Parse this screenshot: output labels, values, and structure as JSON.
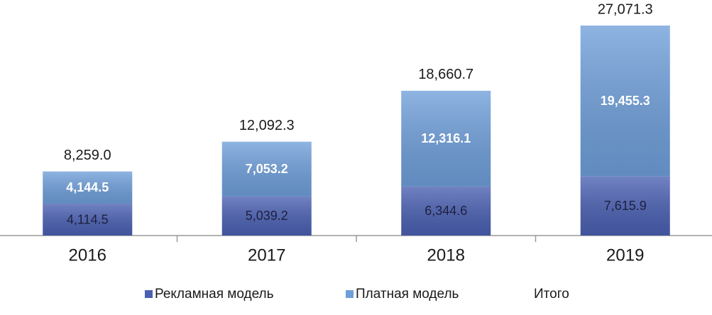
{
  "chart_data": {
    "type": "bar",
    "stacked": true,
    "categories": [
      "2016",
      "2017",
      "2018",
      "2019"
    ],
    "series": [
      {
        "name": "Рекламная модель",
        "color": "#4a60b2",
        "values": [
          4114.5,
          5039.2,
          6344.6,
          7615.9
        ],
        "value_labels": [
          "4,114.5",
          "5,039.2",
          "6,344.6",
          "7,615.9"
        ]
      },
      {
        "name": "Платная модель",
        "color": "#6f9fda",
        "values": [
          4144.5,
          7053.2,
          12316.1,
          19455.3
        ],
        "value_labels": [
          "4,144.5",
          "7,053.2",
          "12,316.1",
          "19,455.3"
        ]
      }
    ],
    "total": {
      "name": "Итого",
      "values": [
        8259.0,
        12092.3,
        18660.7,
        27071.3
      ],
      "value_labels": [
        "8,259.0",
        "12,092.3",
        "18,660.7",
        "27,071.3"
      ]
    }
  }
}
